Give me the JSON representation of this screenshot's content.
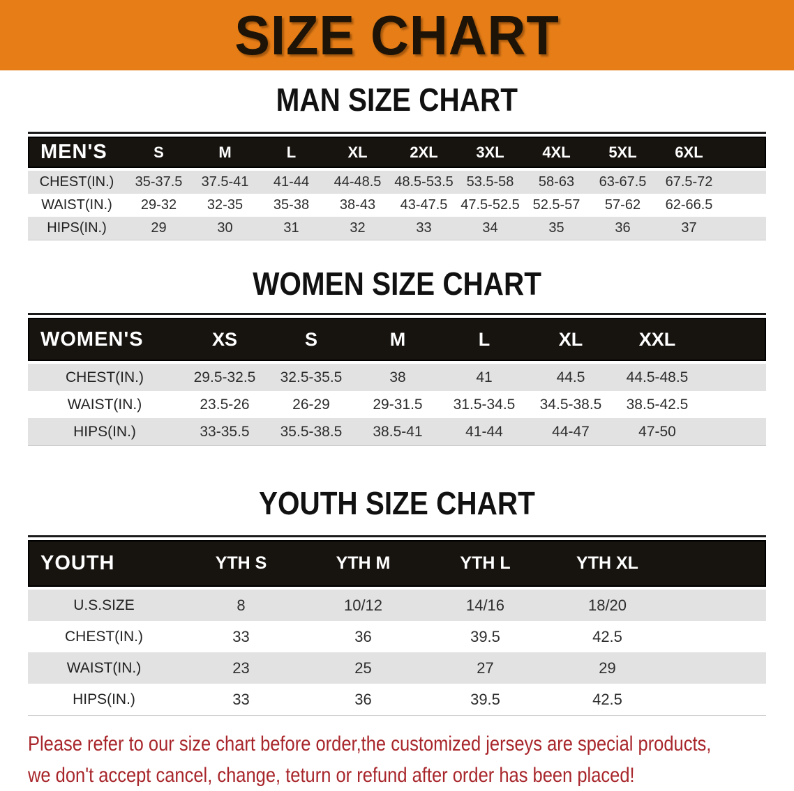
{
  "banner": {
    "title": "SIZE CHART"
  },
  "colors": {
    "banner_bg": "#E67D17",
    "header_bar_bg": "#17130F",
    "header_bar_text": "#FFFFFF",
    "shaded_row_bg": "#E2E2E2",
    "disclaimer_text": "#A8262B"
  },
  "sections": {
    "men": {
      "heading": "MAN SIZE CHART",
      "corner_label": "MEN'S",
      "columns": [
        "S",
        "M",
        "L",
        "XL",
        "2XL",
        "3XL",
        "4XL",
        "5XL",
        "6XL"
      ],
      "rows": [
        {
          "label": "CHEST(IN.)",
          "values": [
            "35-37.5",
            "37.5-41",
            "41-44",
            "44-48.5",
            "48.5-53.5",
            "53.5-58",
            "58-63",
            "63-67.5",
            "67.5-72"
          ]
        },
        {
          "label": "WAIST(IN.)",
          "values": [
            "29-32",
            "32-35",
            "35-38",
            "38-43",
            "43-47.5",
            "47.5-52.5",
            "52.5-57",
            "57-62",
            "62-66.5"
          ]
        },
        {
          "label": "HIPS(IN.)",
          "values": [
            "29",
            "30",
            "31",
            "32",
            "33",
            "34",
            "35",
            "36",
            "37"
          ]
        }
      ]
    },
    "women": {
      "heading": "WOMEN SIZE CHART",
      "corner_label": "WOMEN'S",
      "columns": [
        "XS",
        "S",
        "M",
        "L",
        "XL",
        "XXL"
      ],
      "rows": [
        {
          "label": "CHEST(IN.)",
          "values": [
            "29.5-32.5",
            "32.5-35.5",
            "38",
            "41",
            "44.5",
            "44.5-48.5"
          ]
        },
        {
          "label": "WAIST(IN.)",
          "values": [
            "23.5-26",
            "26-29",
            "29-31.5",
            "31.5-34.5",
            "34.5-38.5",
            "38.5-42.5"
          ]
        },
        {
          "label": "HIPS(IN.)",
          "values": [
            "33-35.5",
            "35.5-38.5",
            "38.5-41",
            "41-44",
            "44-47",
            "47-50"
          ]
        }
      ]
    },
    "youth": {
      "heading": "YOUTH SIZE CHART",
      "corner_label": "YOUTH",
      "columns": [
        "YTH S",
        "YTH M",
        "YTH L",
        "YTH XL"
      ],
      "rows": [
        {
          "label": "U.S.SIZE",
          "values": [
            "8",
            "10/12",
            "14/16",
            "18/20"
          ]
        },
        {
          "label": "CHEST(IN.)",
          "values": [
            "33",
            "36",
            "39.5",
            "42.5"
          ]
        },
        {
          "label": "WAIST(IN.)",
          "values": [
            "23",
            "25",
            "27",
            "29"
          ]
        },
        {
          "label": "HIPS(IN.)",
          "values": [
            "33",
            "36",
            "39.5",
            "42.5"
          ]
        }
      ]
    }
  },
  "disclaimer": {
    "line1": "Please refer to our size chart before order,the customized jerseys are special products,",
    "line2": "we don't accept cancel, change, teturn or refund after order has been placed!"
  }
}
